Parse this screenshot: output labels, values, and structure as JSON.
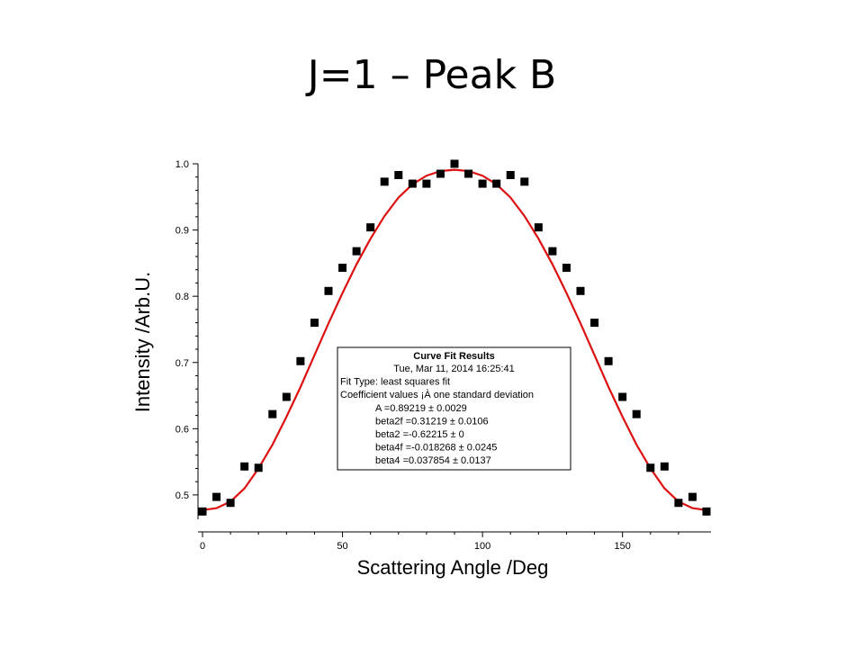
{
  "slide": {
    "title": "J=1 – Peak B"
  },
  "chart_data": {
    "type": "scatter",
    "title": "",
    "xlabel": "Scattering Angle /Deg",
    "ylabel": "Intensity /Arb.U.",
    "xlim": [
      0,
      180
    ],
    "ylim": [
      0.47,
      1.0
    ],
    "xticks": [
      0,
      50,
      100,
      150
    ],
    "yticks": [
      0.5,
      0.6,
      0.7,
      0.8,
      0.9,
      1.0
    ],
    "xtick_labels": [
      "0",
      "50",
      "100",
      "150"
    ],
    "ytick_labels": [
      "0.5",
      "0.6",
      "0.7",
      "0.8",
      "0.9",
      "1.0"
    ],
    "grid": false,
    "series": [
      {
        "type": "scatter",
        "marker": "square",
        "color": "#000000",
        "x": [
          0,
          5,
          10,
          15,
          20,
          25,
          30,
          35,
          40,
          45,
          50,
          55,
          60,
          65,
          70,
          75,
          80,
          85,
          90,
          95,
          100,
          105,
          110,
          115,
          120,
          125,
          130,
          135,
          140,
          145,
          150,
          155,
          160,
          165,
          170,
          175,
          180
        ],
        "y": [
          0.475,
          0.497,
          0.488,
          0.543,
          0.541,
          0.622,
          0.648,
          0.702,
          0.76,
          0.808,
          0.843,
          0.868,
          0.904,
          0.973,
          0.983,
          0.97,
          0.97,
          0.985,
          1.0,
          0.985,
          0.97,
          0.97,
          0.983,
          0.973,
          0.904,
          0.868,
          0.843,
          0.808,
          0.76,
          0.702,
          0.648,
          0.622,
          0.541,
          0.543,
          0.488,
          0.497,
          0.475
        ]
      },
      {
        "type": "line",
        "color": "#dd1111",
        "x": [
          0,
          5,
          10,
          15,
          20,
          25,
          30,
          35,
          40,
          45,
          50,
          55,
          60,
          65,
          70,
          75,
          80,
          85,
          90,
          95,
          100,
          105,
          110,
          115,
          120,
          125,
          130,
          135,
          140,
          145,
          150,
          155,
          160,
          165,
          170,
          175,
          180
        ],
        "y": [
          0.477,
          0.48,
          0.49,
          0.51,
          0.54,
          0.576,
          0.618,
          0.663,
          0.711,
          0.759,
          0.805,
          0.848,
          0.887,
          0.921,
          0.949,
          0.969,
          0.982,
          0.989,
          0.991,
          0.989,
          0.982,
          0.969,
          0.949,
          0.921,
          0.887,
          0.848,
          0.805,
          0.759,
          0.711,
          0.663,
          0.618,
          0.576,
          0.54,
          0.51,
          0.49,
          0.48,
          0.477
        ]
      }
    ],
    "annotation": {
      "title": "Curve Fit Results",
      "lines": [
        "Tue, Mar 11, 2014 16:25:41",
        "Fit Type: least squares fit",
        "Coefficient values ¡À one standard deviation",
        "A      =0.89219 ± 0.0029",
        "beta2f =0.31219 ± 0.0106",
        "beta2  =-0.62215 ± 0",
        "beta4f =-0.018268 ± 0.0245",
        "beta4  =0.037854 ± 0.0137"
      ]
    }
  }
}
